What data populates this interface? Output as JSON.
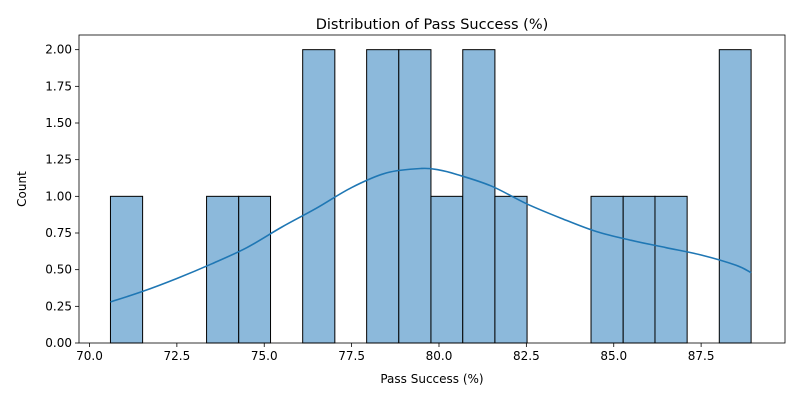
{
  "chart_data": {
    "type": "bar",
    "subtype": "histogram-with-kde",
    "title": "Distribution of Pass Success (%)",
    "xlabel": "Pass Success (%)",
    "ylabel": "Count",
    "xlim": [
      69.7,
      89.9
    ],
    "ylim": [
      0,
      2.1
    ],
    "xticks": [
      70.0,
      72.5,
      75.0,
      77.5,
      80.0,
      82.5,
      85.0,
      87.5
    ],
    "xtick_labels": [
      "70.0",
      "72.5",
      "75.0",
      "77.5",
      "80.0",
      "82.5",
      "85.0",
      "87.5"
    ],
    "yticks": [
      0,
      0.25,
      0.5,
      0.75,
      1.0,
      1.25,
      1.5,
      1.75,
      2.0
    ],
    "ytick_labels": [
      "0.00",
      "0.25",
      "0.50",
      "0.75",
      "1.00",
      "1.25",
      "1.50",
      "1.75",
      "2.00"
    ],
    "grid": false,
    "bar_color": "#8cb9db",
    "bar_edge_color": "#000000",
    "line_color": "#1f77b4",
    "bins": [
      {
        "start": 70.6,
        "end": 71.52,
        "count": 1
      },
      {
        "start": 71.52,
        "end": 72.43,
        "count": 0
      },
      {
        "start": 72.43,
        "end": 73.35,
        "count": 0
      },
      {
        "start": 73.35,
        "end": 74.27,
        "count": 1
      },
      {
        "start": 74.27,
        "end": 75.18,
        "count": 1
      },
      {
        "start": 75.18,
        "end": 76.1,
        "count": 0
      },
      {
        "start": 76.1,
        "end": 77.02,
        "count": 2
      },
      {
        "start": 77.02,
        "end": 77.93,
        "count": 0
      },
      {
        "start": 77.93,
        "end": 78.85,
        "count": 2
      },
      {
        "start": 78.85,
        "end": 79.77,
        "count": 2
      },
      {
        "start": 79.77,
        "end": 80.68,
        "count": 1
      },
      {
        "start": 80.68,
        "end": 81.6,
        "count": 2
      },
      {
        "start": 81.6,
        "end": 82.52,
        "count": 1
      },
      {
        "start": 82.52,
        "end": 83.43,
        "count": 0
      },
      {
        "start": 83.43,
        "end": 84.35,
        "count": 0
      },
      {
        "start": 84.35,
        "end": 85.27,
        "count": 1
      },
      {
        "start": 85.27,
        "end": 86.18,
        "count": 1
      },
      {
        "start": 86.18,
        "end": 87.1,
        "count": 1
      },
      {
        "start": 87.1,
        "end": 88.02,
        "count": 0
      },
      {
        "start": 88.02,
        "end": 88.93,
        "count": 2
      }
    ],
    "kde": {
      "x": [
        70.6,
        71.5,
        72.5,
        73.5,
        74.5,
        75.5,
        76.5,
        77.5,
        78.5,
        79.5,
        80.0,
        80.5,
        81.5,
        82.5,
        83.5,
        84.5,
        85.5,
        86.5,
        87.5,
        88.5,
        88.93
      ],
      "y": [
        0.28,
        0.35,
        0.44,
        0.54,
        0.65,
        0.79,
        0.92,
        1.06,
        1.16,
        1.19,
        1.18,
        1.15,
        1.07,
        0.95,
        0.85,
        0.76,
        0.7,
        0.65,
        0.6,
        0.53,
        0.48
      ]
    }
  }
}
